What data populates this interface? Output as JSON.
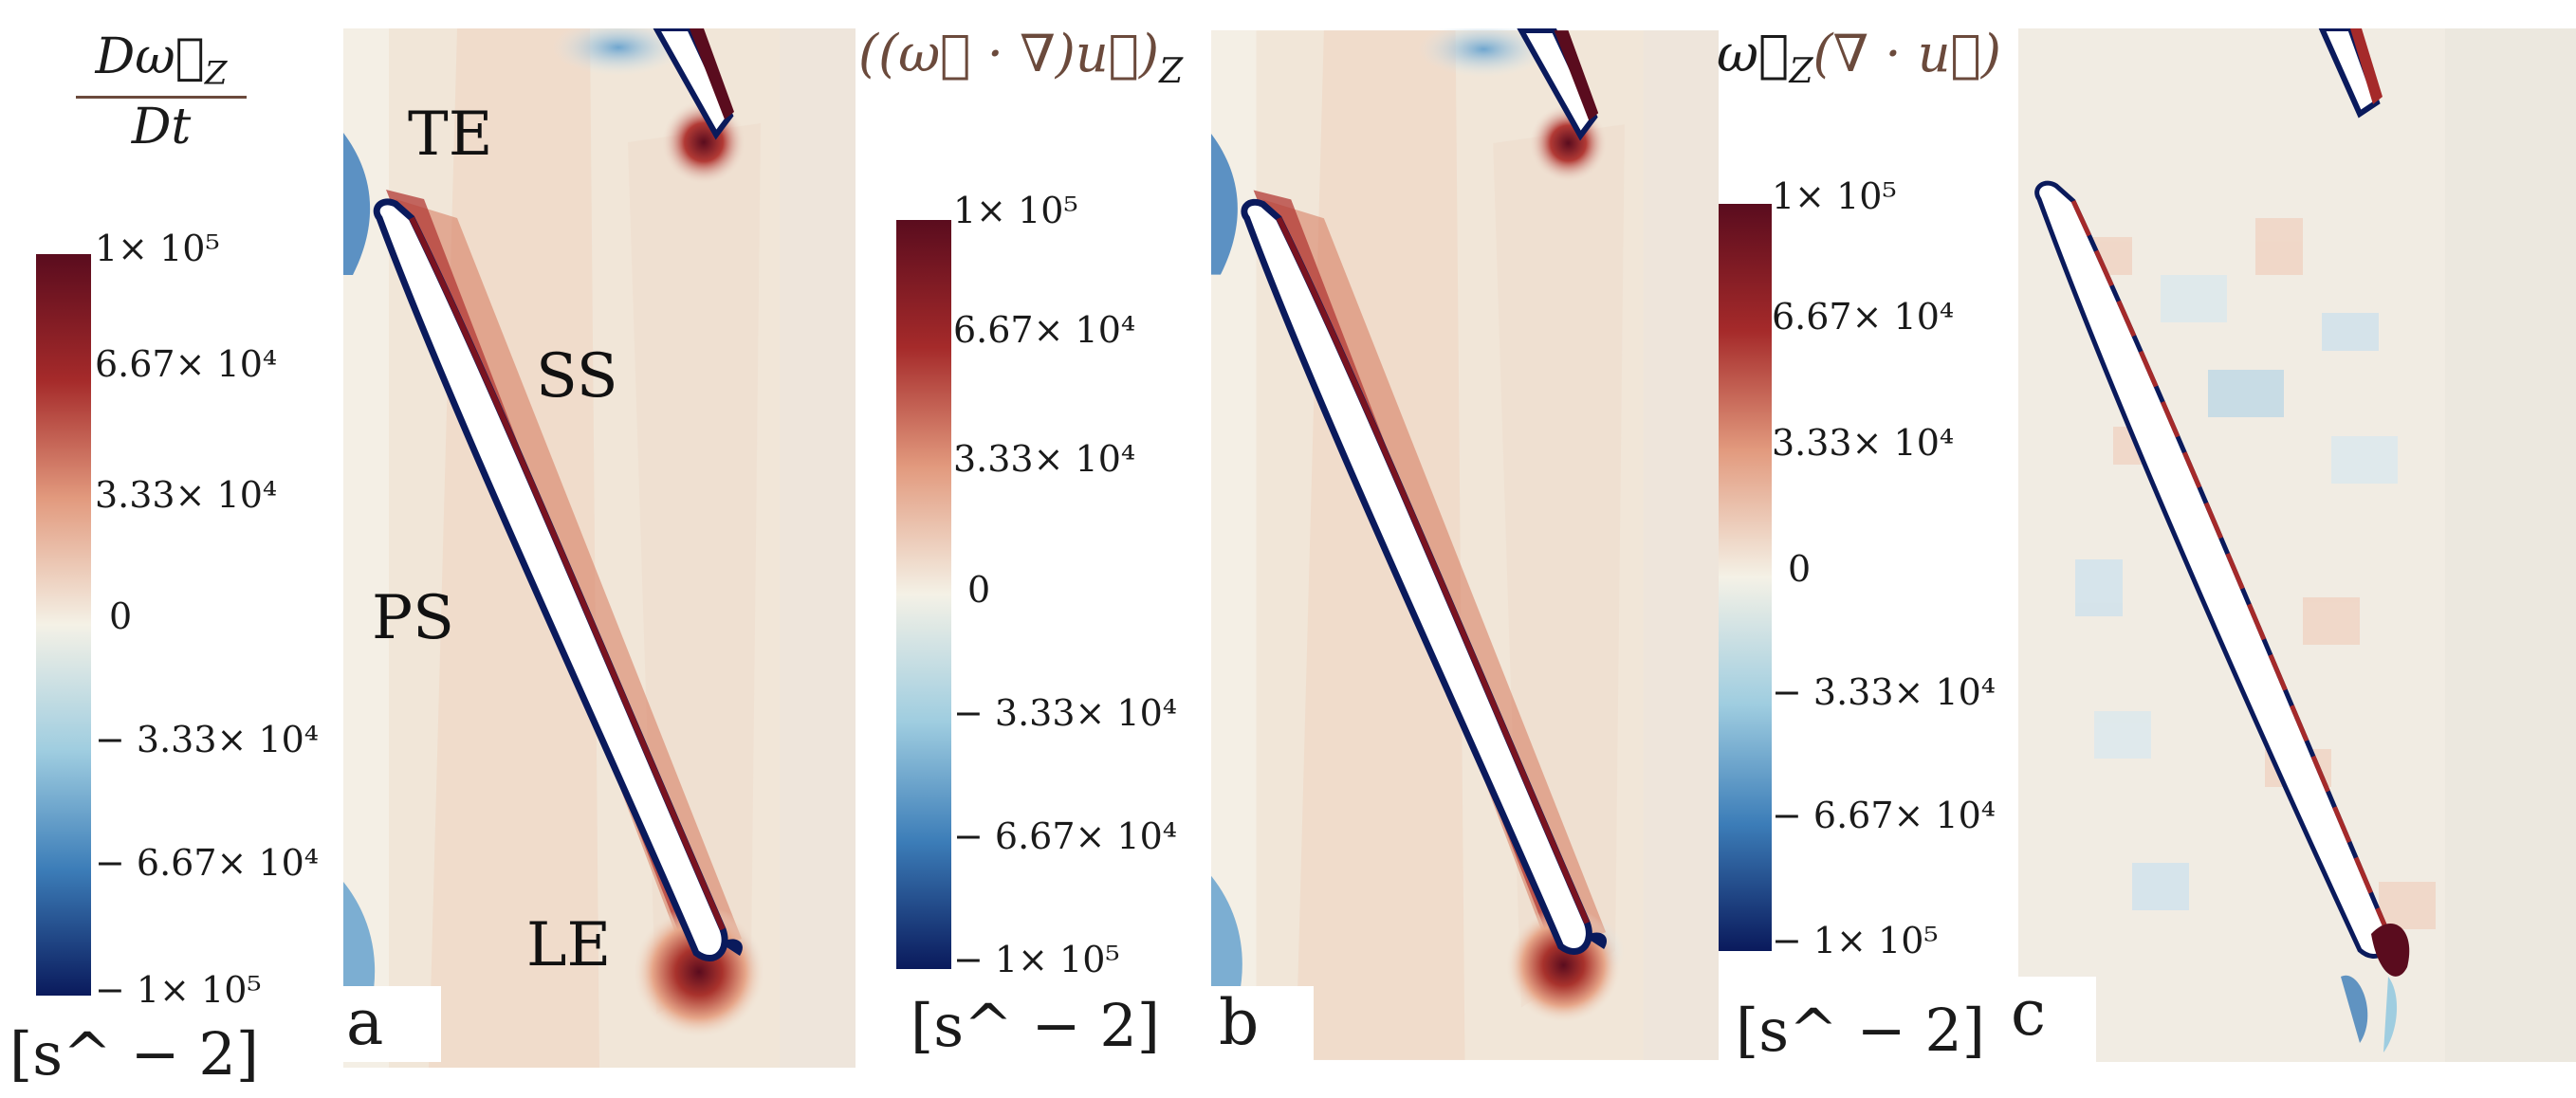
{
  "panels": [
    {
      "letter": "a",
      "title_num": "Dω⃗",
      "title_sub": "Z",
      "title_den": "Dt",
      "unit": "[s^ − 2]",
      "ticks": [
        "1× 10⁵",
        "6.67× 10⁴",
        "3.33× 10⁴",
        "0",
        "− 3.33× 10⁴",
        "− 6.67× 10⁴",
        "− 1× 10⁵"
      ],
      "regions": {
        "te": "TE",
        "ss": "SS",
        "ps": "PS",
        "le": "LE"
      }
    },
    {
      "letter": "b",
      "title": "((ω⃗ · ∇)u⃗)",
      "title_sub": "Z",
      "unit": "[s^ − 2]",
      "ticks": [
        "1× 10⁵",
        "6.67× 10⁴",
        "3.33× 10⁴",
        "0",
        "− 3.33× 10⁴",
        "− 6.67× 10⁴",
        "− 1× 10⁵"
      ]
    },
    {
      "letter": "c",
      "title_a": "ω⃗",
      "title_sub": "Z",
      "title_b": "(∇ · u⃗)",
      "unit": "[s^ − 2]",
      "ticks": [
        "1× 10⁵",
        "6.67× 10⁴",
        "3.33× 10⁴",
        "0",
        "− 3.33× 10⁴",
        "− 6.67× 10⁴",
        "− 1× 10⁵"
      ]
    }
  ],
  "colors": {
    "max": "#5a0c1e",
    "high": "#b23a35",
    "mid_high": "#e8a487",
    "zero": "#f3efe3",
    "mid_low": "#9ccbe0",
    "low": "#3a7bb8",
    "min": "#0a1a5c"
  }
}
